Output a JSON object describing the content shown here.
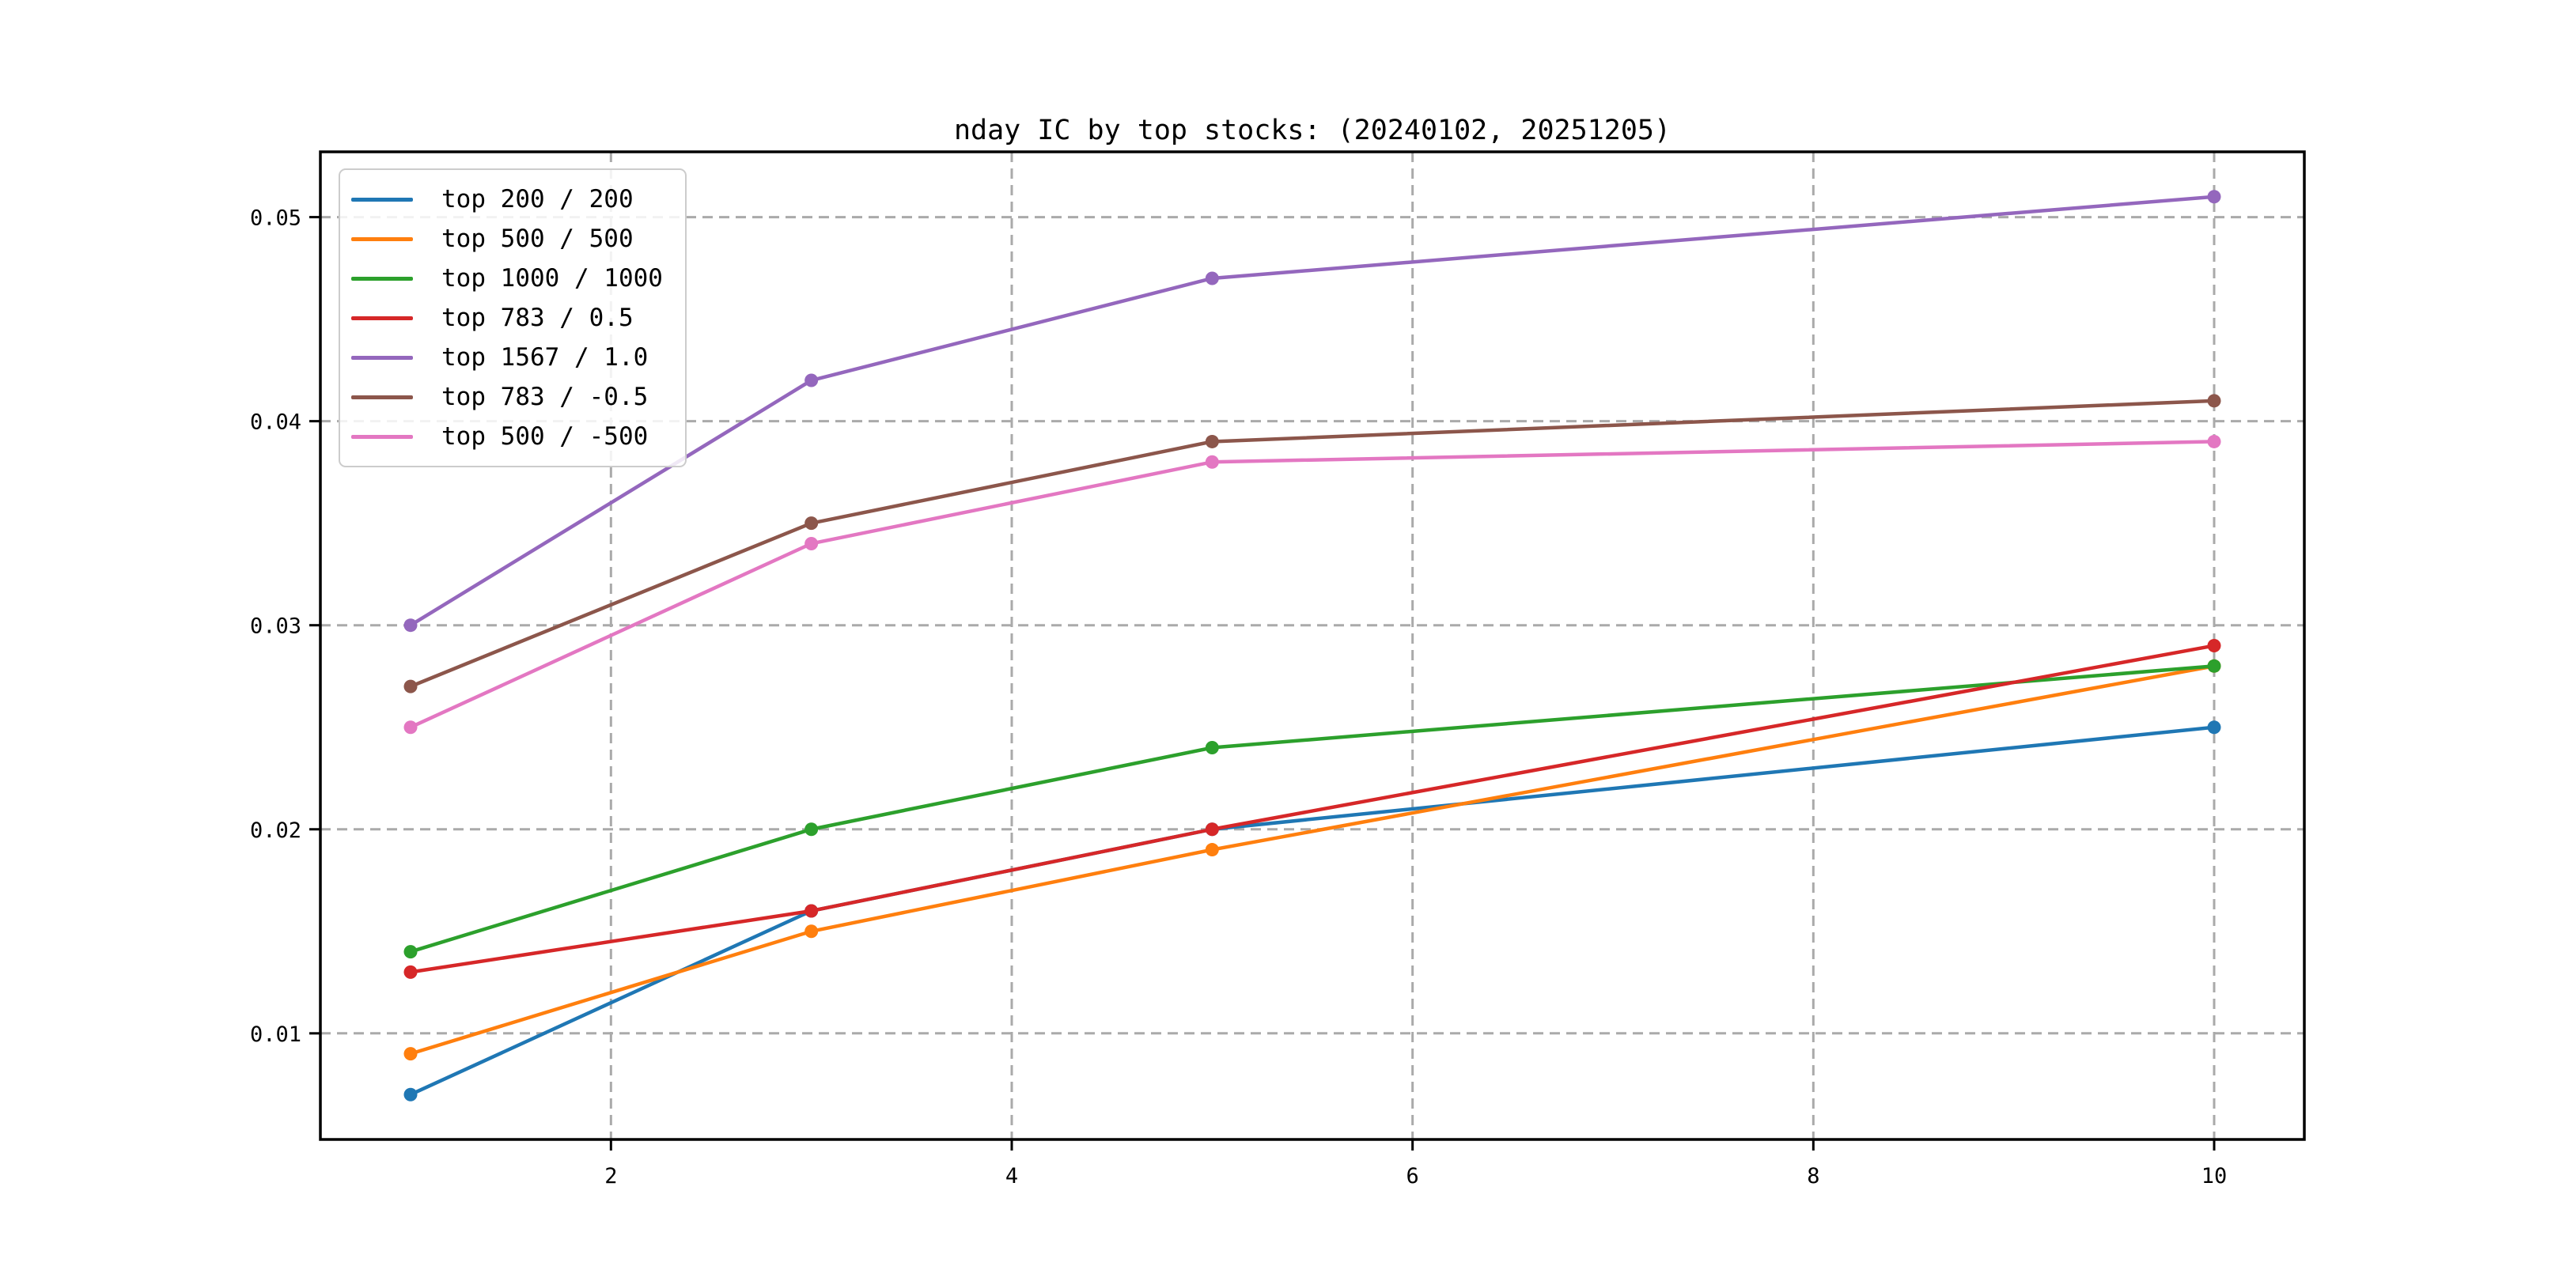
{
  "chart_data": {
    "type": "line",
    "title": "nday IC by top stocks: (20240102, 20251205)",
    "xlabel": "",
    "ylabel": "",
    "x": [
      1,
      3,
      5,
      10
    ],
    "series": [
      {
        "name": "top 200 / 200",
        "color": "#1f77b4",
        "values": [
          0.007,
          0.016,
          0.02,
          0.025
        ]
      },
      {
        "name": "top 500 / 500",
        "color": "#ff7f0e",
        "values": [
          0.009,
          0.015,
          0.019,
          0.028
        ]
      },
      {
        "name": "top 1000 / 1000",
        "color": "#2ca02c",
        "values": [
          0.014,
          0.02,
          0.024,
          0.028
        ]
      },
      {
        "name": "top 783 / 0.5",
        "color": "#d62728",
        "values": [
          0.013,
          0.016,
          0.02,
          0.029
        ]
      },
      {
        "name": "top 1567 / 1.0",
        "color": "#9467bd",
        "values": [
          0.03,
          0.042,
          0.047,
          0.051
        ]
      },
      {
        "name": "top 783 / -0.5",
        "color": "#8c564b",
        "values": [
          0.027,
          0.035,
          0.039,
          0.041
        ]
      },
      {
        "name": "top 500 / -500",
        "color": "#e377c2",
        "values": [
          0.025,
          0.034,
          0.038,
          0.039
        ]
      }
    ],
    "xticks": [
      2,
      4,
      6,
      8,
      10
    ],
    "yticks": [
      0.01,
      0.02,
      0.03,
      0.04,
      0.05
    ],
    "xlim": [
      0.55,
      10.45
    ],
    "ylim": [
      0.0048,
      0.0532
    ],
    "grid": "dashed",
    "grid_color": "#aaaaaa",
    "spine_color": "#000000",
    "marker": "o",
    "legend_position": "upper-left",
    "background_color": "#ffffff"
  }
}
